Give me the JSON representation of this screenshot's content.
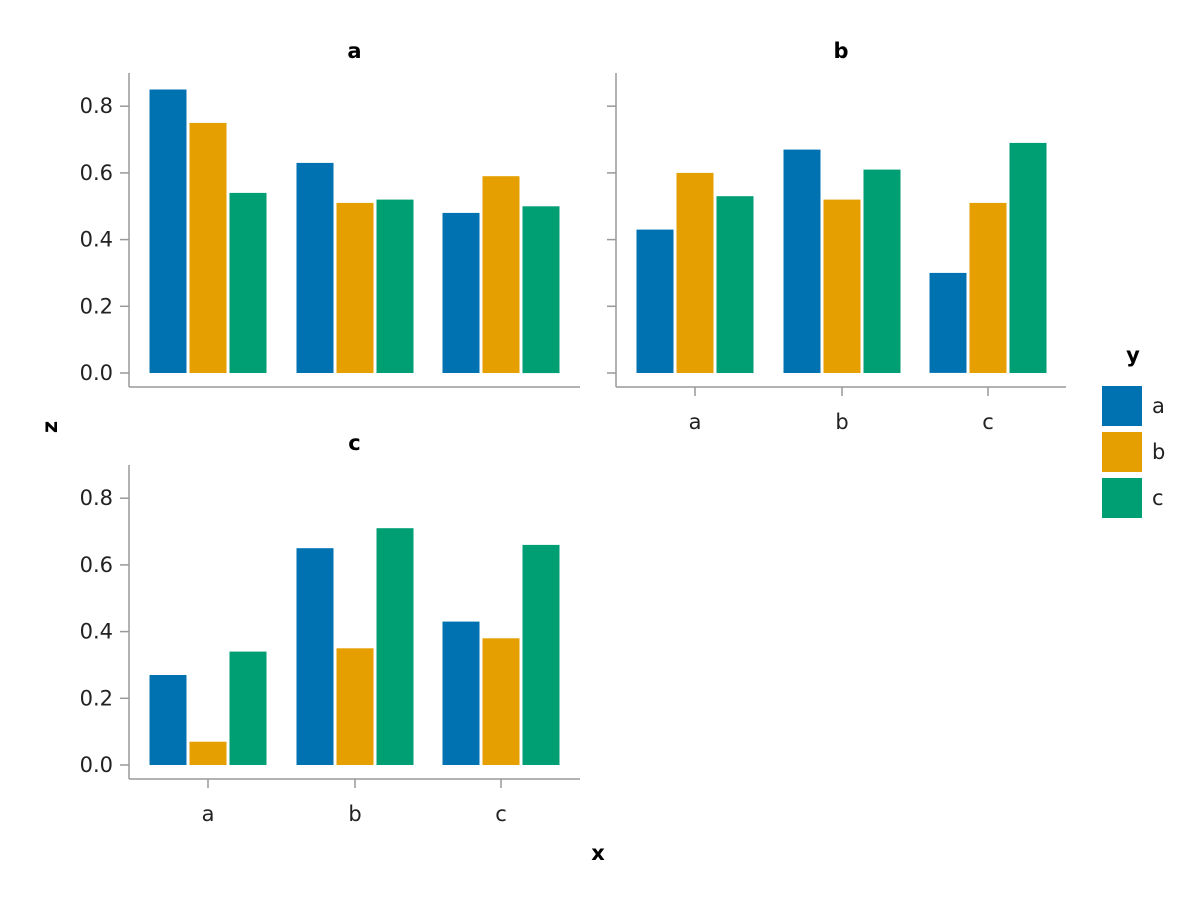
{
  "chart_data": {
    "type": "bar",
    "layout": "faceted grouped bars, 2x2 grid with 3 panels",
    "xlabel": "x",
    "ylabel": "z",
    "ylim": [
      0,
      0.9
    ],
    "y_ticks": [
      "0.0",
      "0.2",
      "0.4",
      "0.6",
      "0.8"
    ],
    "categories": [
      "a",
      "b",
      "c"
    ],
    "grid": false,
    "legend": {
      "title": "y",
      "placement": "right",
      "entries": [
        {
          "label": "a",
          "color": "#0072B2"
        },
        {
          "label": "b",
          "color": "#E69F00"
        },
        {
          "label": "c",
          "color": "#009E73"
        }
      ]
    },
    "panels": [
      {
        "title": "a",
        "series": [
          {
            "values": [
              0.85,
              0.63,
              0.48
            ]
          },
          {
            "values": [
              0.75,
              0.51,
              0.59
            ]
          },
          {
            "values": [
              0.54,
              0.52,
              0.5
            ]
          }
        ]
      },
      {
        "title": "b",
        "series": [
          {
            "values": [
              0.43,
              0.67,
              0.3
            ]
          },
          {
            "values": [
              0.6,
              0.52,
              0.51
            ]
          },
          {
            "values": [
              0.53,
              0.61,
              0.69
            ]
          }
        ]
      },
      {
        "title": "c",
        "series": [
          {
            "values": [
              0.27,
              0.65,
              0.43
            ]
          },
          {
            "values": [
              0.07,
              0.35,
              0.38
            ]
          },
          {
            "values": [
              0.34,
              0.71,
              0.66
            ]
          }
        ]
      }
    ]
  }
}
